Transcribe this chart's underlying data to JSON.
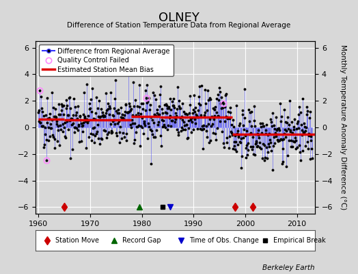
{
  "title": "OLNEY",
  "subtitle": "Difference of Station Temperature Data from Regional Average",
  "ylabel": "Monthly Temperature Anomaly Difference (°C)",
  "xlim": [
    1959.5,
    2013.5
  ],
  "ylim": [
    -6.5,
    6.5
  ],
  "yticks": [
    -6,
    -4,
    -2,
    0,
    2,
    4,
    6
  ],
  "xticks": [
    1960,
    1970,
    1980,
    1990,
    2000,
    2010
  ],
  "bg_color": "#d8d8d8",
  "line_color": "#3333ff",
  "dot_color": "#000000",
  "bias_color": "#dd0000",
  "qc_color": "#ff88ff",
  "station_move_color": "#cc0000",
  "record_gap_color": "#006600",
  "tobs_color": "#0000cc",
  "emp_break_color": "#000000",
  "credit": "Berkeley Earth",
  "seed": 42,
  "n_points": 636,
  "start_year": 1960.0,
  "bias_levels": [
    {
      "start": 1960.0,
      "end": 1965.0,
      "level": 0.6
    },
    {
      "start": 1965.0,
      "end": 1978.0,
      "level": 0.55
    },
    {
      "start": 1978.0,
      "end": 1983.5,
      "level": 0.85
    },
    {
      "start": 1983.5,
      "end": 1997.5,
      "level": 0.75
    },
    {
      "start": 1997.5,
      "end": 2001.5,
      "level": -0.5
    },
    {
      "start": 2001.5,
      "end": 2013.5,
      "level": -0.5
    }
  ],
  "station_moves": [
    1965.0,
    1998.0,
    2001.5
  ],
  "record_gaps": [
    1979.5
  ],
  "tobs_changes": [
    1985.5
  ],
  "emp_breaks": [
    1984.0
  ],
  "qc_indices": [
    3,
    18,
    250,
    430
  ],
  "trend_slope": -0.02
}
